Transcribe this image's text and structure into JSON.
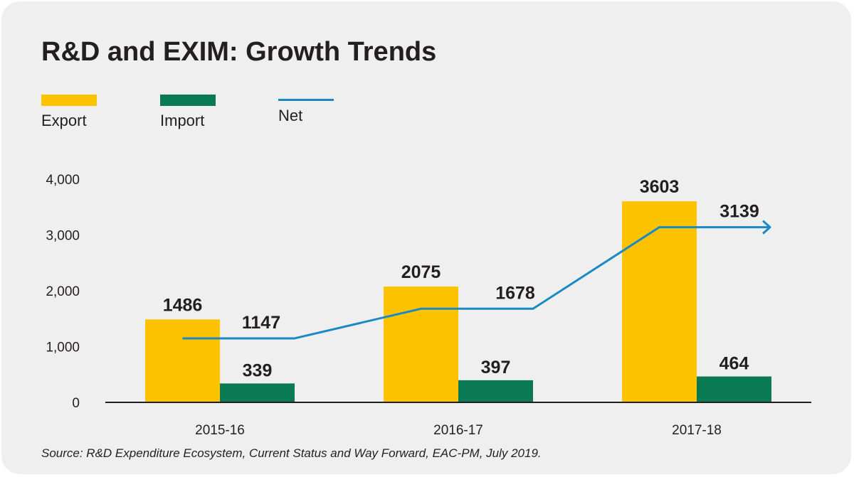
{
  "title": "R&D and EXIM: Growth Trends",
  "source": "Source: R&D Expenditure Ecosystem, Current Status and Way Forward, EAC-PM, July 2019.",
  "colors": {
    "export": "#fdc300",
    "import": "#0a7a55",
    "net": "#1a8ac4",
    "axis": "#231f20"
  },
  "legend": [
    {
      "label": "Export",
      "kind": "bar",
      "color": "#fdc300"
    },
    {
      "label": "Import",
      "kind": "bar",
      "color": "#0a7a55"
    },
    {
      "label": "Net",
      "kind": "line",
      "color": "#1a8ac4"
    }
  ],
  "chart_data": {
    "type": "bar",
    "title": "R&D and EXIM: Growth Trends",
    "categories": [
      "2015-16",
      "2016-17",
      "2017-18"
    ],
    "series": [
      {
        "name": "Export",
        "type": "bar",
        "values": [
          1486,
          2075,
          3603
        ]
      },
      {
        "name": "Import",
        "type": "bar",
        "values": [
          339,
          397,
          464
        ]
      },
      {
        "name": "Net",
        "type": "line",
        "values": [
          1147,
          1678,
          3139
        ]
      }
    ],
    "data_labels": {
      "Export": [
        "1486",
        "2075",
        "3603"
      ],
      "Import": [
        "339",
        "397",
        "464"
      ],
      "Net": [
        "1147",
        "1678",
        "3139"
      ]
    },
    "yticks": [
      0,
      1000,
      2000,
      3000,
      4000
    ],
    "ytick_labels": [
      "0",
      "1,000",
      "2,000",
      "3,000",
      "4,000"
    ],
    "ylim": [
      0,
      4000
    ],
    "xlabel": "",
    "ylabel": "",
    "grid": false,
    "legend_position": "top-left"
  }
}
